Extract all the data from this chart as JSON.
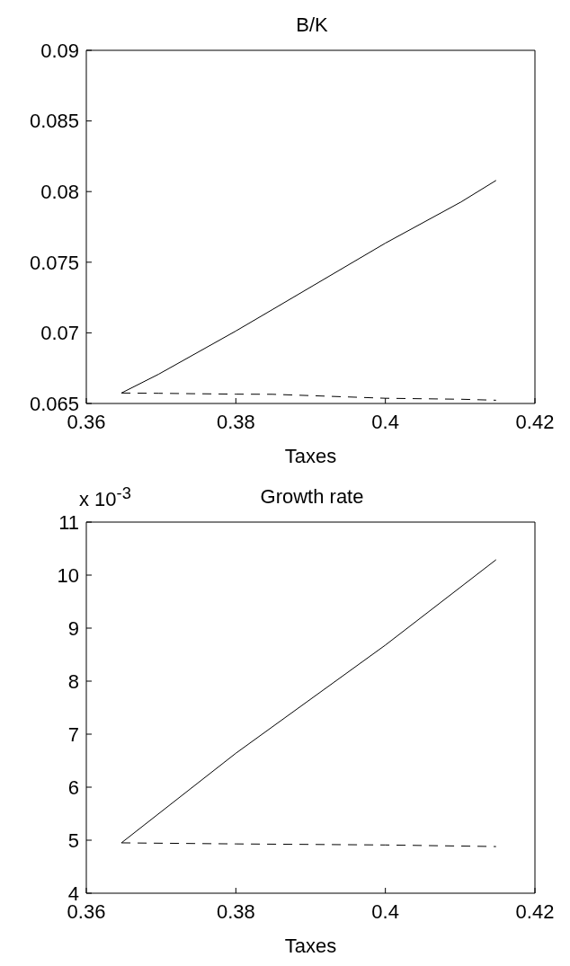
{
  "chart_data": [
    {
      "type": "line",
      "title": "B/K",
      "xlabel": "Taxes",
      "xlim": [
        0.36,
        0.42
      ],
      "xticks": [
        0.36,
        0.38,
        0.4,
        0.42
      ],
      "ylim": [
        0.065,
        0.09
      ],
      "yticks": [
        0.065,
        0.07,
        0.075,
        0.08,
        0.085,
        0.09
      ],
      "grid": false,
      "legend": false,
      "x": [
        0.3647,
        0.3697,
        0.38,
        0.3849,
        0.4,
        0.4101,
        0.4148
      ],
      "series": [
        {
          "color": "#000000",
          "line_style": "solid",
          "values": [
            0.06574,
            0.06708,
            0.07013,
            0.07165,
            0.07635,
            0.07926,
            0.08079
          ]
        },
        {
          "color": "#000000",
          "line_style": "dashed",
          "values": [
            0.06574,
            0.06572,
            0.06566,
            0.06565,
            0.06537,
            0.0653,
            0.06523
          ]
        }
      ]
    },
    {
      "type": "line",
      "title": "Growth rate",
      "xlabel": "Taxes",
      "annotations": [
        "x 10$^{-3}$"
      ],
      "xlim": [
        0.36,
        0.42
      ],
      "xticks": [
        0.36,
        0.38,
        0.4,
        0.42
      ],
      "ylim": [
        4,
        11
      ],
      "yticks": [
        4,
        5,
        6,
        7,
        8,
        9,
        10,
        11
      ],
      "grid": false,
      "legend": false,
      "x": [
        0.3647,
        0.38,
        0.4,
        0.4148
      ],
      "series": [
        {
          "color": "#000000",
          "line_style": "solid",
          "values": [
            4.95,
            6.64,
            8.68,
            10.29
          ]
        },
        {
          "color": "#000000",
          "line_style": "dashed",
          "values": [
            4.95,
            4.93,
            4.91,
            4.88
          ]
        }
      ]
    }
  ]
}
